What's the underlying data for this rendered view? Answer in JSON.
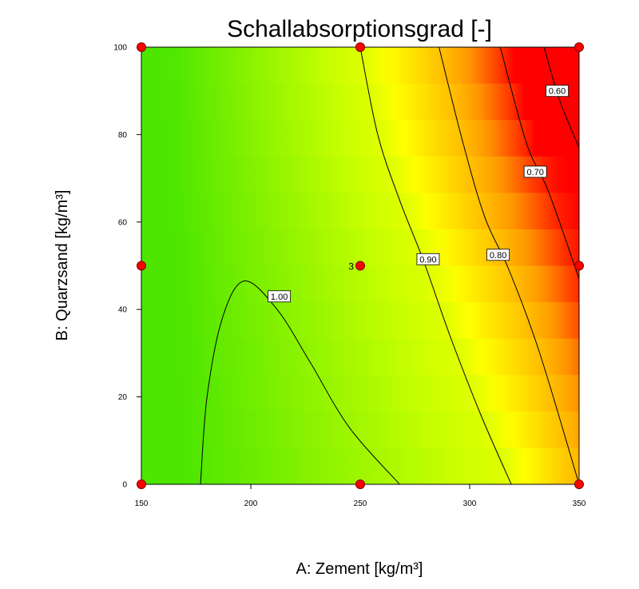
{
  "chart_data": {
    "type": "heatmap",
    "subtype": "contour",
    "title": "Schallabsorptionsgrad [-]",
    "xlabel": "A: Zement [kg/m³]",
    "ylabel": "B: Quarzsand [kg/m³]",
    "xlim": [
      150,
      350
    ],
    "ylim": [
      0,
      100
    ],
    "xticks": [
      150,
      200,
      250,
      300,
      350
    ],
    "yticks": [
      0,
      20,
      40,
      60,
      80,
      100
    ],
    "grid": false,
    "colorscale": [
      "#4ee600",
      "#c8ff00",
      "#ffff00",
      "#ff9900",
      "#ff0000"
    ],
    "contours": [
      {
        "label": "1.00",
        "points": [
          [
            177,
            0
          ],
          [
            180,
            20
          ],
          [
            187,
            38
          ],
          [
            197,
            46.5
          ],
          [
            212,
            40
          ],
          [
            227,
            28
          ],
          [
            245,
            13
          ],
          [
            268,
            0
          ]
        ]
      },
      {
        "label": "0.90",
        "points": [
          [
            250,
            100
          ],
          [
            258,
            80
          ],
          [
            268,
            65
          ],
          [
            279,
            51
          ],
          [
            291,
            34
          ],
          [
            305,
            16
          ],
          [
            319,
            0
          ]
        ]
      },
      {
        "label": "0.80",
        "points": [
          [
            286,
            100
          ],
          [
            297,
            78
          ],
          [
            307,
            61
          ],
          [
            318,
            49
          ],
          [
            332,
            30
          ],
          [
            350,
            0
          ]
        ]
      },
      {
        "label": "0.70",
        "points": [
          [
            314,
            100
          ],
          [
            326,
            78
          ],
          [
            336,
            67
          ],
          [
            350,
            47
          ]
        ]
      },
      {
        "label": "0.60",
        "points": [
          [
            334,
            100
          ],
          [
            341,
            88
          ],
          [
            350,
            77
          ]
        ]
      }
    ],
    "contour_labels": [
      {
        "label": "1.00",
        "x": 213,
        "y": 43
      },
      {
        "label": "0.90",
        "x": 281,
        "y": 51.5
      },
      {
        "label": "0.80",
        "x": 313,
        "y": 52.5
      },
      {
        "label": "0.70",
        "x": 330,
        "y": 71.5
      },
      {
        "label": "0.60",
        "x": 340,
        "y": 90
      }
    ],
    "design_points": [
      {
        "x": 150,
        "y": 100
      },
      {
        "x": 250,
        "y": 100
      },
      {
        "x": 350,
        "y": 100
      },
      {
        "x": 150,
        "y": 50
      },
      {
        "x": 250,
        "y": 50,
        "label": "3"
      },
      {
        "x": 350,
        "y": 50
      },
      {
        "x": 150,
        "y": 0
      },
      {
        "x": 250,
        "y": 0
      },
      {
        "x": 350,
        "y": 0
      }
    ],
    "point_color": "#ff0000"
  }
}
